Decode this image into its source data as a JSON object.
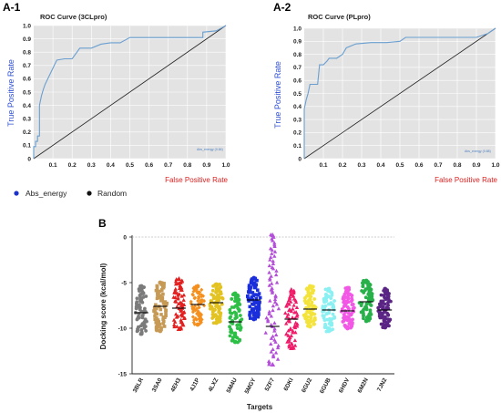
{
  "panel_labels": {
    "a1": "A-1",
    "a2": "A-2",
    "b": "B"
  },
  "legend": {
    "series": "Abs_energy",
    "random": "Random"
  },
  "colors": {
    "roc_line": "#6a9fd0",
    "plot_bg": "#e3e3e3",
    "random_line": "#222222",
    "legend_dot_series": "#1c32c8",
    "legend_dot_random": "#111111"
  },
  "chart_data": [
    {
      "type": "line",
      "title": "ROC Curve (3CLpro)",
      "xlabel": "False Positive Rate",
      "ylabel": "True Positive Rate",
      "xlim": [
        0,
        1.0
      ],
      "ylim": [
        0,
        1.0
      ],
      "x_ticks": [
        "0.1",
        "0.2",
        "0.3",
        "0.4",
        "0.5",
        "0.6",
        "0.7",
        "0.8",
        "0.9",
        "1.0"
      ],
      "y_ticks": [
        "0",
        "0.1",
        "0.2",
        "0.3",
        "0.4",
        "0.5",
        "0.6",
        "0.7",
        "0.8",
        "0.9",
        "1.0"
      ],
      "inline_legend": "Abs_energy (0.84)",
      "series": [
        {
          "name": "Abs_energy",
          "x": [
            0,
            0,
            0.01,
            0.01,
            0.02,
            0.02,
            0.03,
            0.03,
            0.04,
            0.05,
            0.06,
            0.08,
            0.1,
            0.12,
            0.16,
            0.2,
            0.24,
            0.3,
            0.35,
            0.4,
            0.45,
            0.5,
            0.55,
            0.6,
            0.7,
            0.8,
            0.88,
            0.88,
            0.95,
            1.0
          ],
          "y": [
            0,
            0.09,
            0.09,
            0.13,
            0.13,
            0.17,
            0.17,
            0.4,
            0.47,
            0.52,
            0.56,
            0.62,
            0.68,
            0.74,
            0.75,
            0.75,
            0.83,
            0.83,
            0.86,
            0.87,
            0.87,
            0.91,
            0.91,
            0.91,
            0.91,
            0.91,
            0.91,
            0.95,
            0.96,
            1.0
          ]
        },
        {
          "name": "Random",
          "x": [
            0,
            1.0
          ],
          "y": [
            0,
            1.0
          ]
        }
      ]
    },
    {
      "type": "line",
      "title": "ROC Curve (PLpro)",
      "xlabel": "False Positive Rate",
      "ylabel": "True Positive Rate",
      "xlim": [
        0,
        1.0
      ],
      "ylim": [
        0,
        1.0
      ],
      "x_ticks": [
        "0.1",
        "0.2",
        "0.3",
        "0.4",
        "0.5",
        "0.6",
        "0.7",
        "0.8",
        "0.9",
        "1.0"
      ],
      "y_ticks": [
        "0",
        "0.1",
        "0.2",
        "0.3",
        "0.4",
        "0.5",
        "0.6",
        "0.7",
        "0.8",
        "0.9",
        "1.0"
      ],
      "inline_legend": "Abs_energy (0.88)",
      "series": [
        {
          "name": "Abs_energy",
          "x": [
            0,
            0,
            0.01,
            0.02,
            0.03,
            0.03,
            0.07,
            0.08,
            0.1,
            0.12,
            0.13,
            0.17,
            0.2,
            0.22,
            0.27,
            0.35,
            0.43,
            0.5,
            0.53,
            0.6,
            0.7,
            0.8,
            0.9,
            0.96,
            1.0
          ],
          "y": [
            0,
            0.38,
            0.45,
            0.5,
            0.57,
            0.57,
            0.57,
            0.72,
            0.72,
            0.75,
            0.77,
            0.77,
            0.8,
            0.85,
            0.88,
            0.89,
            0.89,
            0.9,
            0.93,
            0.93,
            0.93,
            0.93,
            0.93,
            0.96,
            1.0
          ]
        },
        {
          "name": "Random",
          "x": [
            0,
            1.0
          ],
          "y": [
            0,
            1.0
          ]
        }
      ]
    },
    {
      "type": "scatter",
      "xlabel": "Targets",
      "ylabel": "Docking score (kcal/mol)",
      "ylim": [
        -15,
        0
      ],
      "y_ticks": [
        0,
        -5,
        -10,
        -15
      ],
      "categories": [
        "3BLR",
        "3SA0",
        "4EH3",
        "4J1P",
        "4LXZ",
        "5M4U",
        "5MGY",
        "5ZF7",
        "6DKI",
        "6GU2",
        "6GUB",
        "6HDV",
        "6M2N",
        "7JN2"
      ],
      "colors": [
        "#7b7b7b",
        "#c69a55",
        "#e21f1f",
        "#f5901e",
        "#e3c322",
        "#2dbf46",
        "#1a2fdb",
        "#b34fd8",
        "#ef1c6a",
        "#f3e33b",
        "#8bf0f2",
        "#f257e5",
        "#28b04a",
        "#5a2585"
      ],
      "markers": [
        "circle",
        "square",
        "triangle",
        "diamond",
        "circle",
        "circle",
        "square",
        "triangle",
        "triangle",
        "circle",
        "circle",
        "circle",
        "circle",
        "circle"
      ],
      "ranges": [
        [
          -10.6,
          -5.4
        ],
        [
          -10.3,
          -5
        ],
        [
          -10.1,
          -4.6
        ],
        [
          -9.6,
          -5.4
        ],
        [
          -9.4,
          -5.2
        ],
        [
          -11.5,
          -6.2
        ],
        [
          -9,
          -4.5
        ],
        [
          -14,
          0.2
        ],
        [
          -12.2,
          -5.8
        ],
        [
          -9.8,
          -5.4
        ],
        [
          -10.3,
          -5.7
        ],
        [
          -10,
          -5.6
        ],
        [
          -9.2,
          -4.8
        ],
        [
          -9.9,
          -5.7
        ]
      ],
      "medians": [
        -8.3,
        -7.6,
        -7.8,
        -7.4,
        -7.2,
        -9.3,
        -6.9,
        -9.8,
        -9,
        -7.9,
        -8,
        -8.1,
        -7.1,
        -8
      ]
    }
  ]
}
